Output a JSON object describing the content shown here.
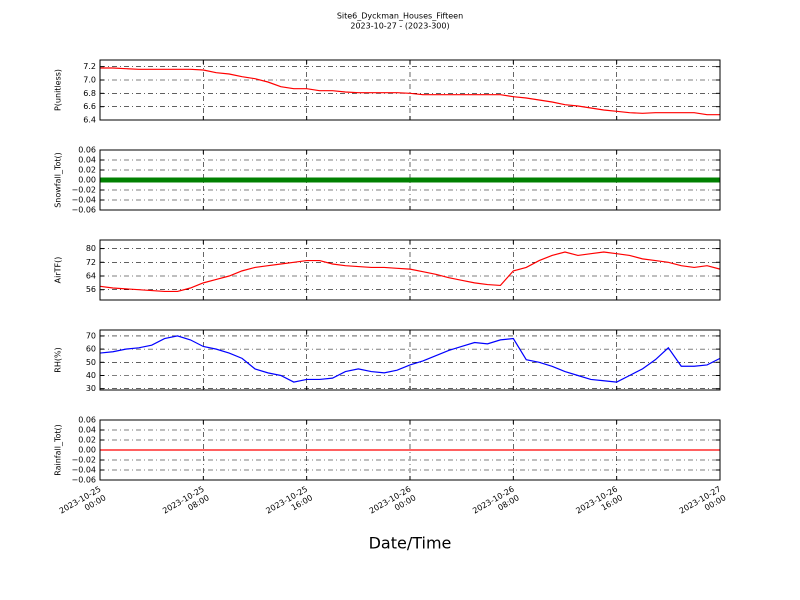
{
  "chart_data": {
    "type": "line",
    "title": "Site6_Dyckman_Houses_Fifteen",
    "subtitle": "2023-10-27 - (2023-300)",
    "xlabel": "Date/Time",
    "xlim": [
      "2023-10-25 00:00",
      "2023-10-27 00:00"
    ],
    "xticks": [
      "2023-10-25 00:00",
      "2023-10-25 08:00",
      "2023-10-25 16:00",
      "2023-10-26 00:00",
      "2023-10-26 08:00",
      "2023-10-26 16:00",
      "2023-10-27 00:00"
    ],
    "x": [
      "2023-10-25 00:00",
      "2023-10-25 01:00",
      "2023-10-25 02:00",
      "2023-10-25 03:00",
      "2023-10-25 04:00",
      "2023-10-25 05:00",
      "2023-10-25 06:00",
      "2023-10-25 07:00",
      "2023-10-25 08:00",
      "2023-10-25 09:00",
      "2023-10-25 10:00",
      "2023-10-25 11:00",
      "2023-10-25 12:00",
      "2023-10-25 13:00",
      "2023-10-25 14:00",
      "2023-10-25 15:00",
      "2023-10-25 16:00",
      "2023-10-25 17:00",
      "2023-10-25 18:00",
      "2023-10-25 19:00",
      "2023-10-25 20:00",
      "2023-10-25 21:00",
      "2023-10-25 22:00",
      "2023-10-25 23:00",
      "2023-10-26 00:00",
      "2023-10-26 01:00",
      "2023-10-26 02:00",
      "2023-10-26 03:00",
      "2023-10-26 04:00",
      "2023-10-26 05:00",
      "2023-10-26 06:00",
      "2023-10-26 07:00",
      "2023-10-26 08:00",
      "2023-10-26 09:00",
      "2023-10-26 10:00",
      "2023-10-26 11:00",
      "2023-10-26 12:00",
      "2023-10-26 13:00",
      "2023-10-26 14:00",
      "2023-10-26 15:00",
      "2023-10-26 16:00",
      "2023-10-26 17:00",
      "2023-10-26 18:00",
      "2023-10-26 19:00",
      "2023-10-26 20:00",
      "2023-10-26 21:00",
      "2023-10-26 22:00",
      "2023-10-26 23:00",
      "2023-10-27 00:00"
    ],
    "grid": true,
    "panels": [
      {
        "ylabel": "P(unitless)",
        "ylim": [
          6.4,
          7.3
        ],
        "yticks": [
          6.4,
          6.6,
          6.8,
          {
            "value": 7,
            "label": "7.0"
          },
          7.2
        ],
        "series": [
          {
            "color": "#ff0000",
            "values": [
              7.18,
              7.18,
              7.17,
              7.16,
              7.16,
              7.16,
              7.16,
              7.16,
              7.15,
              7.11,
              7.09,
              7.05,
              7.02,
              6.97,
              6.9,
              6.87,
              6.87,
              6.84,
              6.84,
              6.82,
              6.81,
              6.81,
              6.81,
              6.81,
              6.8,
              6.78,
              6.78,
              6.78,
              6.78,
              6.78,
              6.78,
              6.78,
              6.75,
              6.73,
              6.7,
              6.67,
              6.63,
              6.61,
              6.58,
              6.55,
              6.53,
              6.51,
              6.5,
              6.51,
              6.51,
              6.51,
              6.51,
              6.48,
              6.48
            ]
          }
        ]
      },
      {
        "ylabel": "Snowfall_Tot()",
        "ylim": [
          -0.06,
          0.06
        ],
        "yticks": [
          {
            "value": -0.06,
            "label": "−0.06"
          },
          {
            "value": -0.04,
            "label": "−0.04"
          },
          {
            "value": -0.02,
            "label": "−0.02"
          },
          {
            "value": 0,
            "label": "0.00"
          },
          0.02,
          0.04,
          0.06
        ],
        "series": [
          {
            "color": "#008000",
            "values": [
              0,
              0,
              0,
              0,
              0,
              0,
              0,
              0,
              0,
              0,
              0,
              0,
              0,
              0,
              0,
              0,
              0,
              0,
              0,
              0,
              0,
              0,
              0,
              0,
              0,
              0,
              0,
              0,
              0,
              0,
              0,
              0,
              0,
              0,
              0,
              0,
              0,
              0,
              0,
              0,
              0,
              0,
              0,
              0,
              0,
              0,
              0,
              0,
              0
            ]
          }
        ]
      },
      {
        "ylabel": "AirTF()",
        "ylim": [
          50,
          85
        ],
        "yticks": [
          56,
          64,
          72,
          80
        ],
        "series": [
          {
            "color": "#ff0000",
            "values": [
              58,
              57,
              56.5,
              56,
              55.5,
              55,
              55,
              57,
              60,
              62,
              64,
              67,
              69,
              70,
              71,
              72,
              73,
              73,
              71,
              70,
              69.5,
              69,
              69,
              68.5,
              68,
              66.5,
              65,
              63,
              61.5,
              60,
              59,
              58.5,
              67,
              69,
              73,
              76,
              78,
              76,
              77,
              78,
              77,
              76,
              74,
              73,
              72,
              70,
              69,
              70,
              68
            ]
          }
        ]
      },
      {
        "ylabel": "RH(%)",
        "ylim": [
          29,
          74.5
        ],
        "yticks": [
          30,
          40,
          50,
          60,
          70
        ],
        "series": [
          {
            "color": "#0000ff",
            "values": [
              57,
              58,
              60,
              61,
              63,
              68,
              70,
              67,
              62,
              60,
              57,
              53,
              45,
              42,
              40,
              35,
              37,
              37,
              38,
              43,
              45,
              43,
              42,
              44,
              48,
              51,
              55,
              59,
              62,
              65,
              64,
              67,
              68,
              52,
              50,
              47,
              43,
              40,
              37,
              36,
              35,
              40,
              45,
              52,
              61,
              47,
              47,
              48,
              53
            ]
          }
        ]
      },
      {
        "ylabel": "Rainfall_Tot()",
        "ylim": [
          -0.06,
          0.06
        ],
        "yticks": [
          {
            "value": -0.06,
            "label": "−0.06"
          },
          {
            "value": -0.04,
            "label": "−0.04"
          },
          {
            "value": -0.02,
            "label": "−0.02"
          },
          {
            "value": 0,
            "label": "0.00"
          },
          0.02,
          0.04,
          0.06
        ],
        "series": [
          {
            "color": "#ff0000",
            "values": [
              0,
              0,
              0,
              0,
              0,
              0,
              0,
              0,
              0,
              0,
              0,
              0,
              0,
              0,
              0,
              0,
              0,
              0,
              0,
              0,
              0,
              0,
              0,
              0,
              0,
              0,
              0,
              0,
              0,
              0,
              0,
              0,
              0,
              0,
              0,
              0,
              0,
              0,
              0,
              0,
              0,
              0,
              0,
              0,
              0,
              0,
              0,
              0,
              0
            ]
          }
        ]
      }
    ]
  }
}
